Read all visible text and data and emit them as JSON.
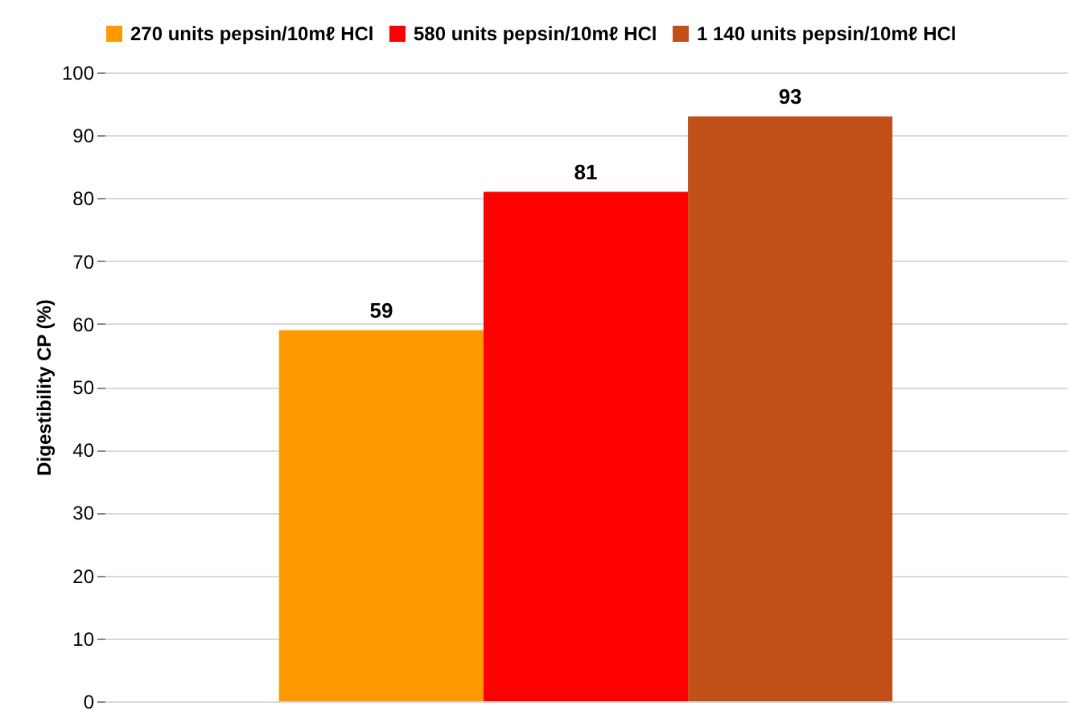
{
  "chart_data": {
    "type": "bar",
    "categories": [
      null
    ],
    "ylabel": "Digestibility CP (%)",
    "series": [
      {
        "name": "270 units pepsin/10mℓ HCl",
        "color": "#ff9900",
        "values": [
          59
        ]
      },
      {
        "name": "580 units pepsin/10mℓ HCl",
        "color": "#ff0000",
        "values": [
          81
        ]
      },
      {
        "name": "1 140 units pepsin/10mℓ HCl",
        "color": "#c05018",
        "values": [
          93
        ]
      }
    ],
    "ylim": [
      0,
      100
    ],
    "yticks": [
      0,
      10,
      20,
      30,
      40,
      50,
      60,
      70,
      80,
      90,
      100
    ],
    "grid": "y",
    "legend": "top",
    "data_labels": true,
    "tick_labels": "y"
  }
}
